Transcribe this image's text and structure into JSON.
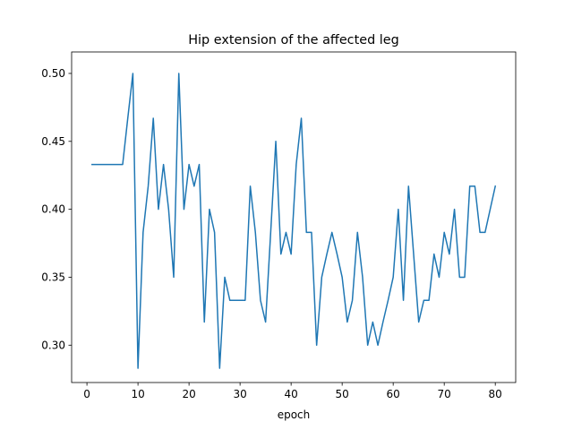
{
  "chart_data": {
    "type": "line",
    "title": "Hip extension of the affected leg",
    "xlabel": "epoch",
    "ylabel": "",
    "xlim": [
      -3,
      84
    ],
    "ylim": [
      0.2725,
      0.5158
    ],
    "xticks": [
      0,
      10,
      20,
      30,
      40,
      50,
      60,
      70,
      80
    ],
    "yticks": [
      0.3,
      0.35,
      0.4,
      0.45,
      0.5
    ],
    "xtick_labels": [
      "0",
      "10",
      "20",
      "30",
      "40",
      "50",
      "60",
      "70",
      "80"
    ],
    "ytick_labels": [
      "0.30",
      "0.35",
      "0.40",
      "0.45",
      "0.50"
    ],
    "grid": false,
    "series": [
      {
        "color": "#1f77b4",
        "x": [
          1,
          2,
          3,
          4,
          5,
          6,
          7,
          8,
          9,
          10,
          11,
          12,
          13,
          14,
          15,
          16,
          17,
          18,
          19,
          20,
          21,
          22,
          23,
          24,
          25,
          26,
          27,
          28,
          29,
          30,
          31,
          32,
          33,
          34,
          35,
          36,
          37,
          38,
          39,
          40,
          41,
          42,
          43,
          44,
          45,
          46,
          47,
          48,
          49,
          50,
          51,
          52,
          53,
          54,
          55,
          56,
          57,
          58,
          59,
          60,
          61,
          62,
          63,
          64,
          65,
          66,
          67,
          68,
          69,
          70,
          71,
          72,
          73,
          74,
          75,
          76,
          77,
          78,
          79,
          80
        ],
        "y": [
          0.433,
          0.433,
          0.433,
          0.433,
          0.433,
          0.433,
          0.433,
          0.467,
          0.5,
          0.283,
          0.383,
          0.417,
          0.467,
          0.4,
          0.433,
          0.4,
          0.35,
          0.5,
          0.4,
          0.433,
          0.417,
          0.433,
          0.317,
          0.4,
          0.383,
          0.283,
          0.35,
          0.333,
          0.333,
          0.333,
          0.333,
          0.417,
          0.383,
          0.333,
          0.317,
          0.383,
          0.45,
          0.367,
          0.383,
          0.367,
          0.433,
          0.467,
          0.383,
          0.383,
          0.3,
          0.35,
          0.367,
          0.383,
          0.367,
          0.35,
          0.317,
          0.333,
          0.383,
          0.35,
          0.3,
          0.317,
          0.3,
          0.317,
          0.333,
          0.35,
          0.4,
          0.333,
          0.417,
          0.367,
          0.317,
          0.333,
          0.333,
          0.367,
          0.35,
          0.383,
          0.367,
          0.4,
          0.35,
          0.35,
          0.417,
          0.417,
          0.383,
          0.383,
          0.4,
          0.417
        ]
      }
    ]
  }
}
